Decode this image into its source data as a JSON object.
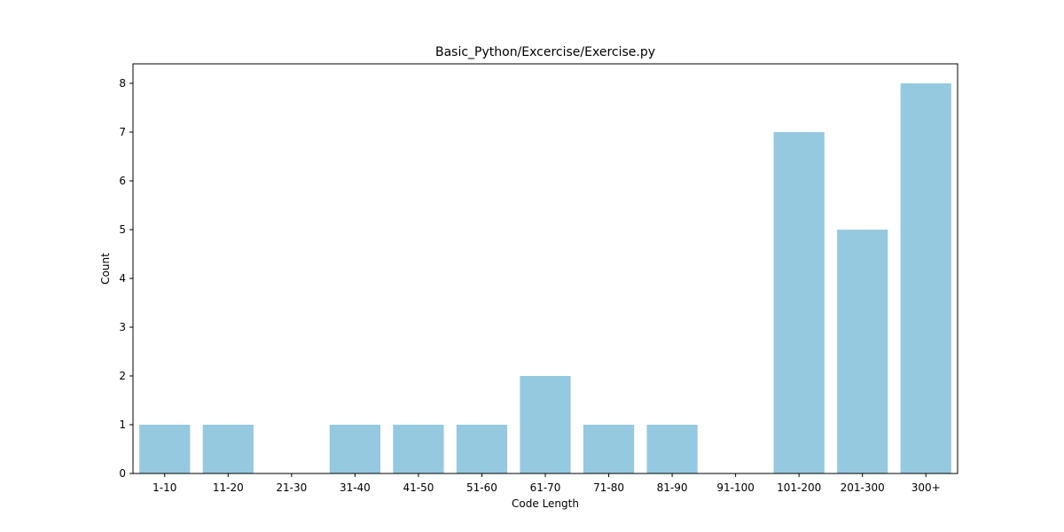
{
  "chart_data": {
    "type": "bar",
    "title": "Basic_Python/Excercise/Exercise.py",
    "xlabel": "Code Length",
    "ylabel": "Count",
    "categories": [
      "1-10",
      "11-20",
      "21-30",
      "31-40",
      "41-50",
      "51-60",
      "61-70",
      "71-80",
      "81-90",
      "91-100",
      "101-200",
      "201-300",
      "300+"
    ],
    "values": [
      1,
      1,
      0,
      1,
      1,
      1,
      2,
      1,
      1,
      0,
      7,
      5,
      8
    ],
    "ylim": [
      0,
      8.4
    ],
    "yticks": [
      0,
      1,
      2,
      3,
      4,
      5,
      6,
      7,
      8
    ],
    "bar_color": "#95c9df",
    "grid": false,
    "legend": "none"
  }
}
